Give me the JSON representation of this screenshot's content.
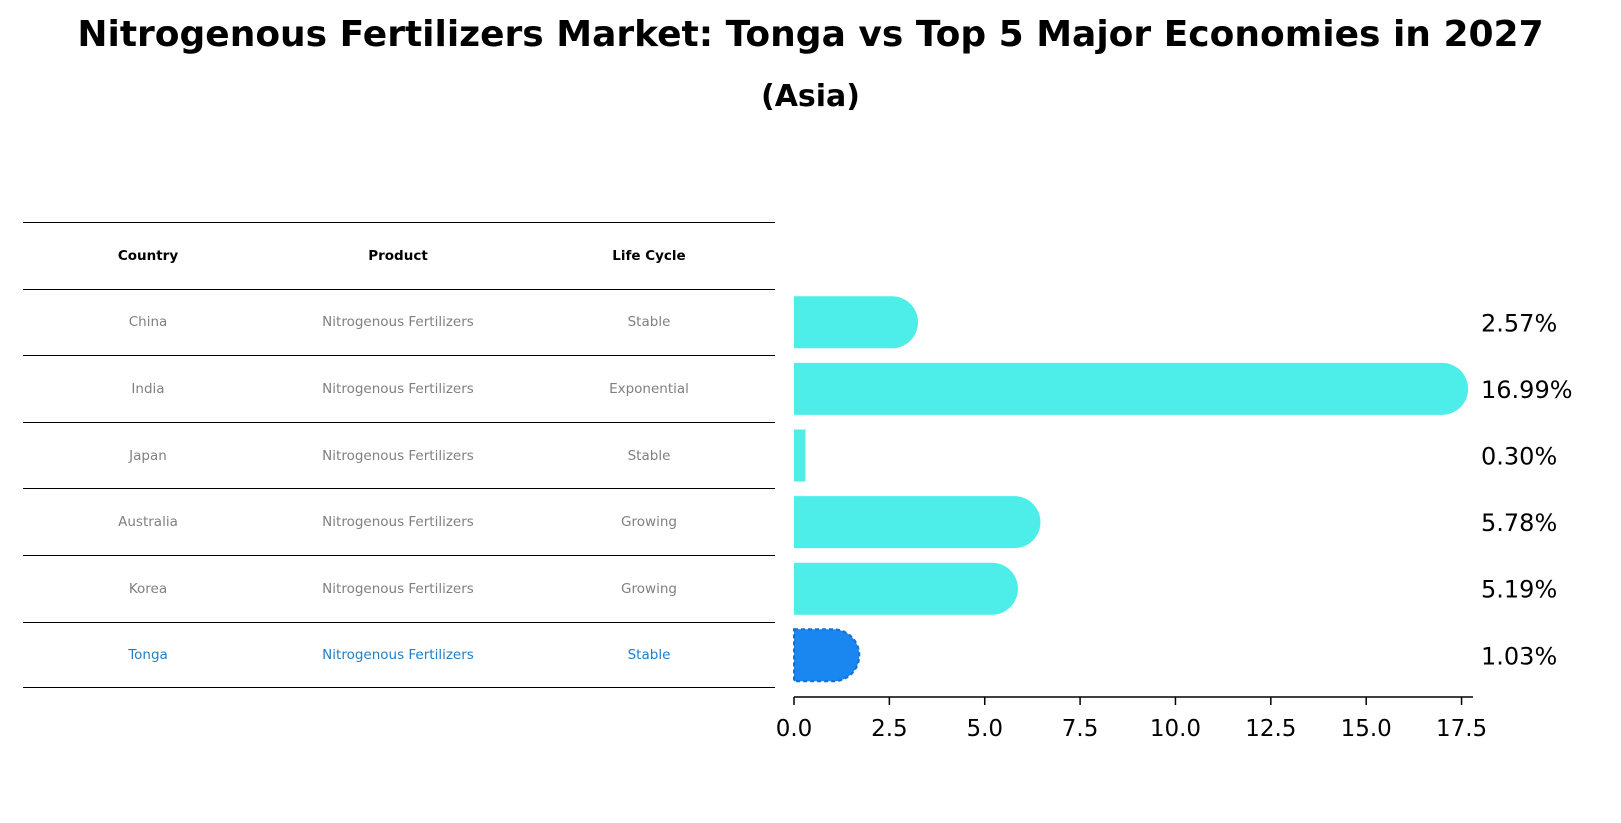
{
  "chart_data": {
    "type": "bar",
    "orientation": "horizontal",
    "title": "Nitrogenous Fertilizers Market: Tonga vs Top 5 Major Economies in 2027",
    "subtitle": "(Asia)",
    "categories": [
      "China",
      "India",
      "Japan",
      "Australia",
      "Korea",
      "Tonga"
    ],
    "values": [
      2.57,
      16.99,
      0.3,
      5.78,
      5.19,
      1.03
    ],
    "value_labels": [
      "2.57%",
      "16.99%",
      "0.30%",
      "5.78%",
      "5.19%",
      "1.03%"
    ],
    "highlight": "Tonga",
    "xlim": [
      0,
      17.8
    ],
    "xticks": [
      "0.0",
      "2.5",
      "5.0",
      "7.5",
      "10.0",
      "12.5",
      "15.0",
      "17.5"
    ],
    "xtick_values": [
      0,
      2.5,
      5,
      7.5,
      10,
      12.5,
      15,
      17.5
    ],
    "xlabel": "",
    "ylabel": "",
    "colors": {
      "default": "#4dede9",
      "highlight": "#1a86f0"
    }
  },
  "table": {
    "headers": [
      "Country",
      "Product",
      "Life Cycle"
    ],
    "rows": [
      [
        "China",
        "Nitrogenous Fertilizers",
        "Stable"
      ],
      [
        "India",
        "Nitrogenous Fertilizers",
        "Exponential"
      ],
      [
        "Japan",
        "Nitrogenous Fertilizers",
        "Stable"
      ],
      [
        "Australia",
        "Nitrogenous Fertilizers",
        "Growing"
      ],
      [
        "Korea",
        "Nitrogenous Fertilizers",
        "Growing"
      ],
      [
        "Tonga",
        "Nitrogenous Fertilizers",
        "Stable"
      ]
    ]
  }
}
